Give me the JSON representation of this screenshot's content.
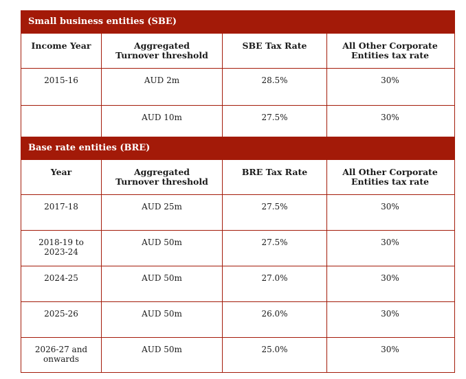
{
  "sbe": {
    "title": "Small business entities (SBE)",
    "headers": [
      "Income Year",
      "Aggregated\nTurnover threshold",
      "SBE Tax Rate",
      "All Other Corporate\nEntities tax rate"
    ],
    "rows": [
      [
        "2015-16",
        "AUD 2m",
        "28.5%",
        "30%"
      ],
      [
        "",
        "AUD 10m",
        "27.5%",
        "30%"
      ]
    ]
  },
  "bre": {
    "title": "Base rate entities (BRE)",
    "headers": [
      "Year",
      "Aggregated\nTurnover threshold",
      "BRE Tax Rate",
      "All Other Corporate\nEntities tax rate"
    ],
    "rows": [
      [
        "2017-18",
        "AUD 25m",
        "27.5%",
        "30%"
      ],
      [
        "2018-19 to\n2023-24",
        "AUD 50m",
        "27.5%",
        "30%"
      ],
      [
        "2024-25",
        "AUD 50m",
        "27.0%",
        "30%"
      ],
      [
        "2025-26",
        "AUD 50m",
        "26.0%",
        "30%"
      ],
      [
        "2026-27 and\nonwards",
        "AUD 50m",
        "25.0%",
        "30%"
      ]
    ]
  },
  "colors": {
    "accent": "#a31a08"
  }
}
